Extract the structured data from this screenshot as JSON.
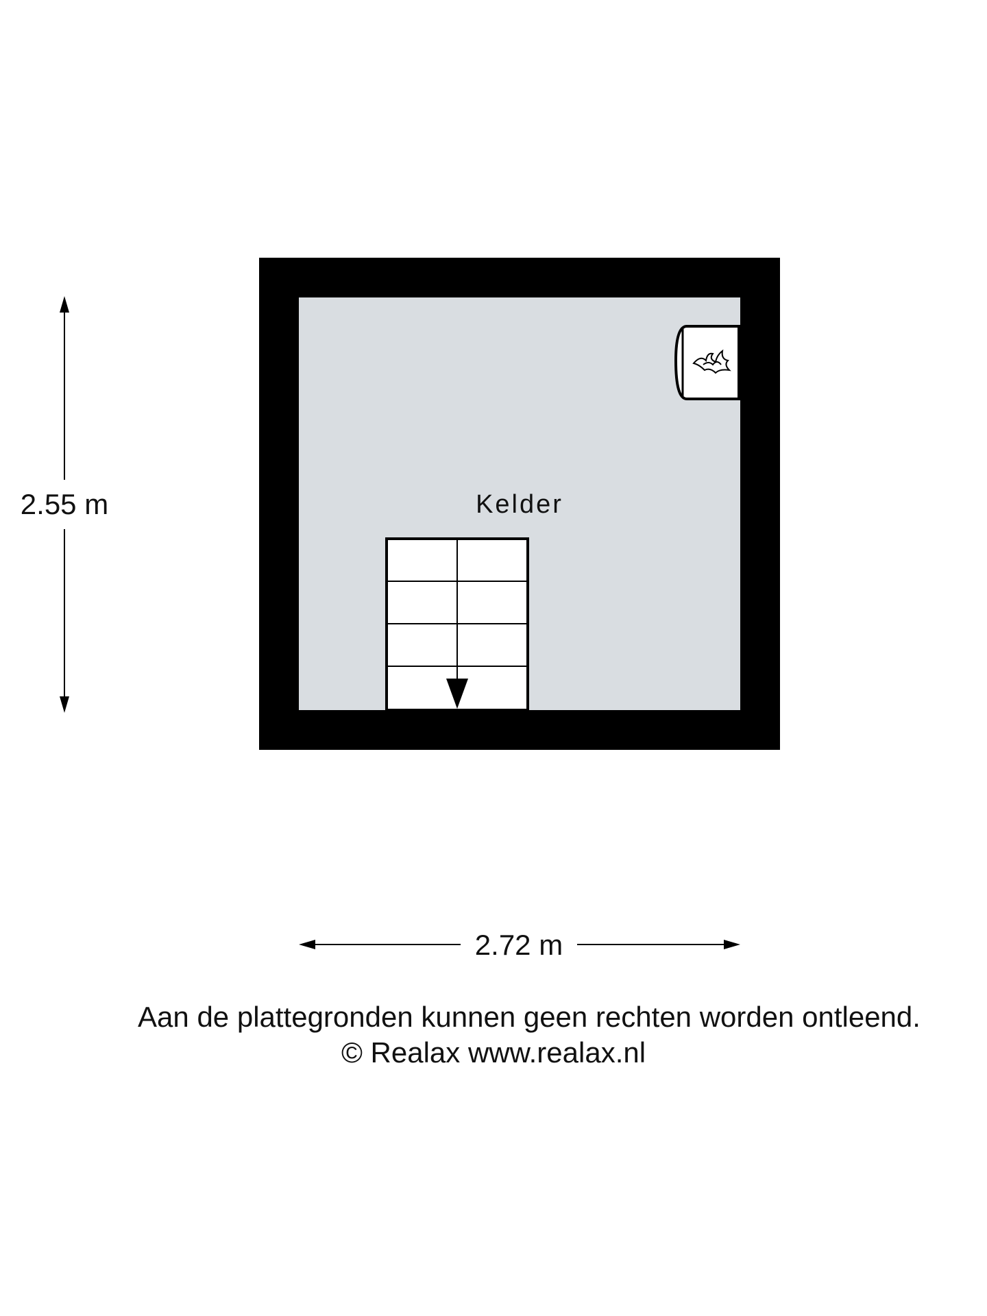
{
  "room": {
    "name": "Kelder"
  },
  "dimensions": {
    "height": "2.55 m",
    "width": "2.72 m"
  },
  "fixtures": {
    "boiler_icon": "flame-icon",
    "stairs_direction": "down"
  },
  "footer": {
    "disclaimer": "Aan de plattegronden kunnen geen rechten worden ontleend.",
    "copyright": "© Realax www.realax.nl"
  },
  "colors": {
    "wall": "#000000",
    "floor": "#d9dde1",
    "stairs": "#ffffff",
    "text": "#111111"
  }
}
